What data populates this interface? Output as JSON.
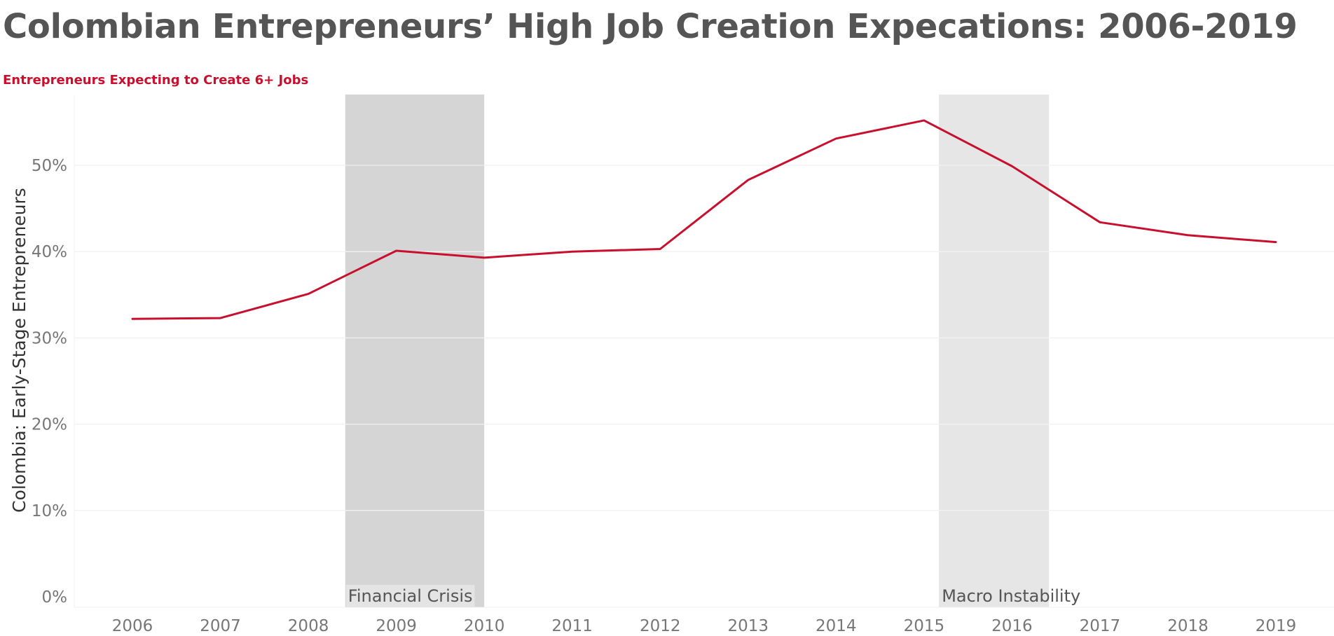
{
  "title": "Colombian Entrepreneurs’ High Job Creation Expecations: 2006-2019",
  "subtitle": "Entrepreneurs Expecting to Create 6+ Jobs",
  "colors": {
    "line": "#c8102e",
    "band_dark": "#d5d5d5",
    "band_light": "#e6e6e6",
    "grid": "#eeeeee"
  },
  "chart_data": {
    "type": "line",
    "title": "Colombian Entrepreneurs’ High Job Creation Expecations: 2006-2019",
    "subtitle": "Entrepreneurs Expecting to Create 6+ Jobs",
    "ylabel": "Colombia: Early-Stage Entrepreneurs",
    "xlabel": "",
    "x": [
      2006,
      2007,
      2008,
      2009,
      2010,
      2011,
      2012,
      2013,
      2014,
      2015,
      2016,
      2017,
      2018,
      2019
    ],
    "series": [
      {
        "values": [
          32.2,
          32.3,
          35.1,
          40.1,
          39.3,
          40.0,
          40.3,
          48.3,
          53.1,
          55.2,
          49.9,
          43.4,
          41.9,
          41.1
        ]
      }
    ],
    "ylim": [
      0,
      58
    ],
    "yticks": [
      0,
      10,
      20,
      30,
      40,
      50
    ],
    "ytick_labels": [
      "0%",
      "10%",
      "20%",
      "30%",
      "40%",
      "50%"
    ],
    "xtick_labels": [
      "2006",
      "2007",
      "2008",
      "2009",
      "2010",
      "2011",
      "2012",
      "2013",
      "2014",
      "2015",
      "2016",
      "2017",
      "2018",
      "2019"
    ],
    "grid": true,
    "shaded_periods": [
      {
        "label": "Financial Crisis",
        "start": 2008.42,
        "end": 2010.0,
        "shade": "dark"
      },
      {
        "label": "Macro Instability",
        "start": 2015.17,
        "end": 2016.42,
        "shade": "light"
      }
    ]
  }
}
